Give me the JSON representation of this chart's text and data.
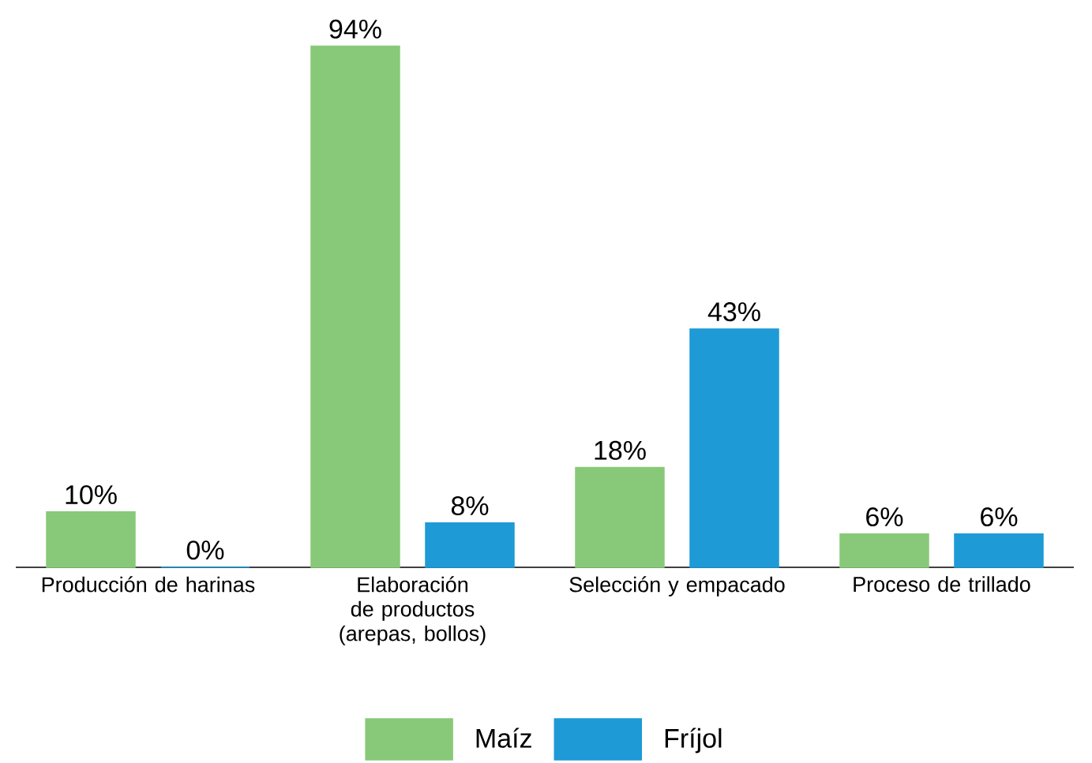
{
  "chart_data": {
    "type": "bar",
    "categories": [
      "Producción de harinas",
      "Elaboración de productos (arepas, bollos)",
      "Selección y empacado",
      "Proceso de trillado"
    ],
    "series": [
      {
        "name": "Maíz",
        "color": "#88c979",
        "values": [
          10,
          94,
          18,
          6
        ],
        "value_labels": [
          "10%",
          "94%",
          "18%",
          "6%"
        ]
      },
      {
        "name": "Fríjol",
        "color": "#1e9ad6",
        "values": [
          0,
          8,
          43,
          6
        ],
        "value_labels": [
          "0%",
          "8%",
          "43%",
          "6%"
        ]
      }
    ],
    "legend": "bottom"
  }
}
